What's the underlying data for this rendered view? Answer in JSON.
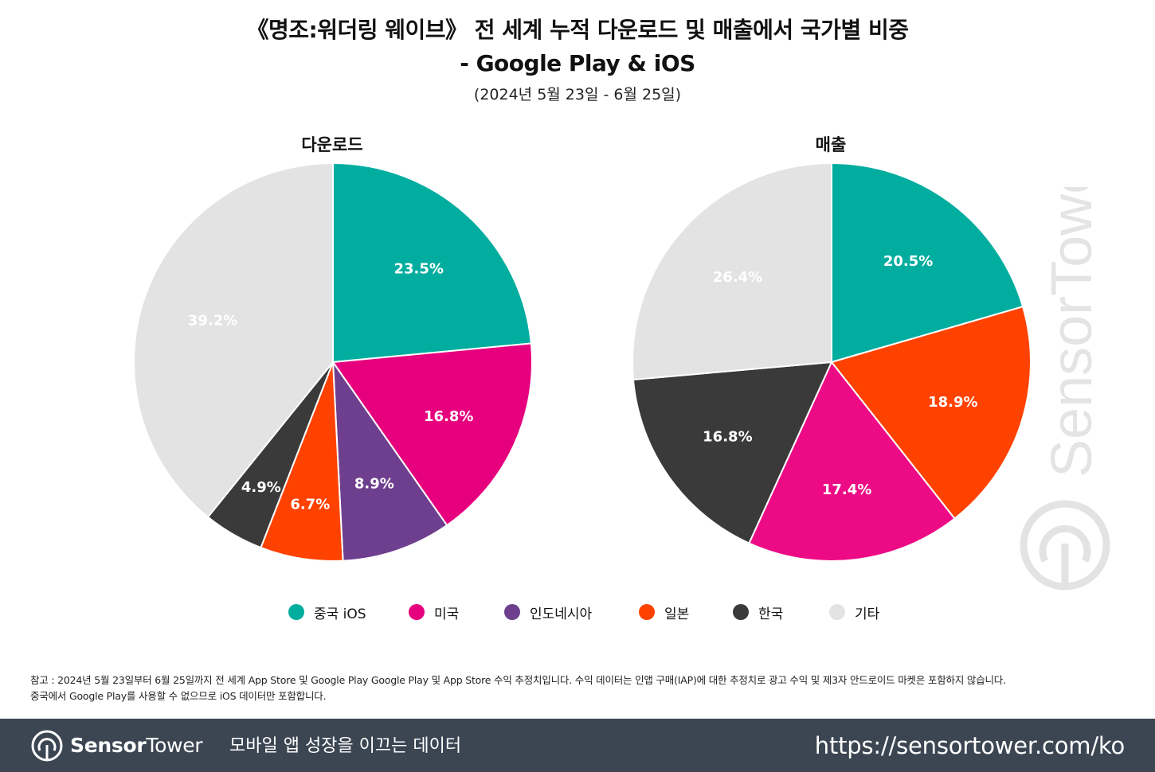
{
  "header": {
    "title_line1": "《명조:워더링 웨이브》 전 세계 누적 다운로드 및 매출에서 국가별 비중",
    "title_line2": "- Google Play & iOS",
    "period": "(2024년 5월 23일 - 6월 25일)"
  },
  "colors": {
    "china_ios": "#00ad9f",
    "usa": "#e6007e",
    "indonesia": "#6e3f8e",
    "japan": "#ff4200",
    "korea": "#3a3a3a",
    "other": "#e3e3e3"
  },
  "chart_data": [
    {
      "type": "pie",
      "title": "다운로드",
      "slices": [
        {
          "label": "중국 iOS",
          "value": 23.5,
          "display": "23.5%",
          "color": "#00ad9f"
        },
        {
          "label": "미국",
          "value": 16.8,
          "display": "16.8%",
          "color": "#e6007e"
        },
        {
          "label": "인도네시아",
          "value": 8.9,
          "display": "8.9%",
          "color": "#6e3f8e"
        },
        {
          "label": "일본",
          "value": 6.7,
          "display": "6.7%",
          "color": "#ff4200"
        },
        {
          "label": "한국",
          "value": 4.9,
          "display": "4.9%",
          "color": "#3a3a3a"
        },
        {
          "label": "기타",
          "value": 39.2,
          "display": "39.2%",
          "color": "#e3e3e3"
        }
      ]
    },
    {
      "type": "pie",
      "title": "매출",
      "slices": [
        {
          "label": "중국 iOS",
          "value": 20.5,
          "display": "20.5%",
          "color": "#00ad9f"
        },
        {
          "label": "일본",
          "value": 18.9,
          "display": "18.9%",
          "color": "#ff4200"
        },
        {
          "label": "미국",
          "value": 17.4,
          "display": "17.4%",
          "color": "#ed0a85"
        },
        {
          "label": "한국",
          "value": 16.8,
          "display": "16.8%",
          "color": "#3a3a3a"
        },
        {
          "label": "기타",
          "value": 26.4,
          "display": "26.4%",
          "color": "#e3e3e3"
        }
      ]
    }
  ],
  "legend": [
    {
      "label": "중국 iOS",
      "color": "#00ad9f"
    },
    {
      "label": "미국",
      "color": "#e6007e"
    },
    {
      "label": "인도네시아",
      "color": "#6e3f8e"
    },
    {
      "label": "일본",
      "color": "#ff4200"
    },
    {
      "label": "한국",
      "color": "#3a3a3a"
    },
    {
      "label": "기타",
      "color": "#e3e3e3"
    }
  ],
  "note": {
    "line1": "참고 : 2024년 5월 23일부터 6월 25일까지 전 세계 App Store 및 Google Play Google Play 및 App Store 수익 추정치입니다. 수익 데이터는 인앱 구매(IAP)에 대한 추정치로 광고 수익 및 제3자 안드로이드 마켓은 포함하지 않습니다.",
    "line2": "중국에서 Google Play를 사용할 수 없으므로 iOS 데이터만 포함합니다."
  },
  "watermark": {
    "text": "SensorTower"
  },
  "footer": {
    "brand_bold": "Sensor",
    "brand_light": "Tower",
    "tagline": "모바일 앱 성장을 이끄는 데이터",
    "url": "https://sensortower.com/ko"
  }
}
